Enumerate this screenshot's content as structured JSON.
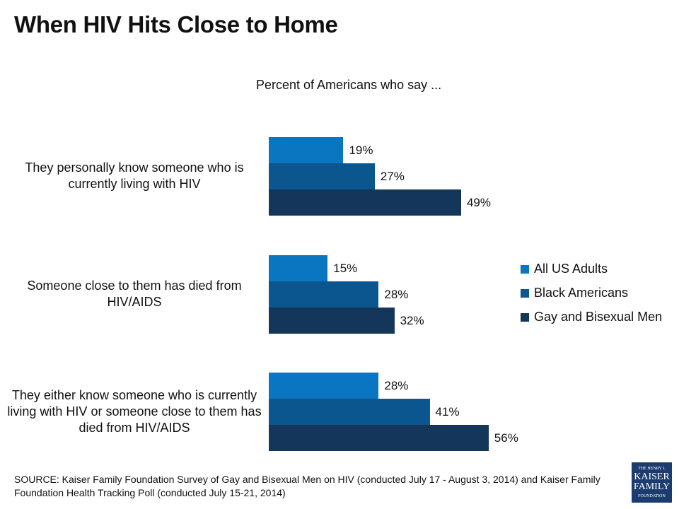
{
  "title": "When HIV Hits Close to Home",
  "chart_data": {
    "type": "bar",
    "orientation": "horizontal",
    "title": "Percent of Americans who say ...",
    "categories": [
      "They personally know someone who is currently living with HIV",
      "Someone close to them has died from HIV/AIDS",
      "They either know someone who is currently living with HIV or someone close to them has died from HIV/AIDS"
    ],
    "series": [
      {
        "name": "All US Adults",
        "color": "#0a76c1",
        "values": [
          19,
          15,
          28
        ]
      },
      {
        "name": "Black Americans",
        "color": "#0c5690",
        "values": [
          27,
          28,
          41
        ]
      },
      {
        "name": "Gay and Bisexual Men",
        "color": "#15365b",
        "values": [
          49,
          32,
          56
        ]
      }
    ],
    "value_suffix": "%",
    "legend_position": "right",
    "grid": false
  },
  "source": "SOURCE: Kaiser Family Foundation Survey of Gay and Bisexual Men on HIV (conducted July 17 - August 3, 2014) and Kaiser Family Foundation Health Tracking Poll (conducted July 15-21, 2014)",
  "logo": {
    "line1": "THE HENRY J.",
    "line2": "KAISER",
    "line3": "FAMILY",
    "line4": "FOUNDATION"
  }
}
